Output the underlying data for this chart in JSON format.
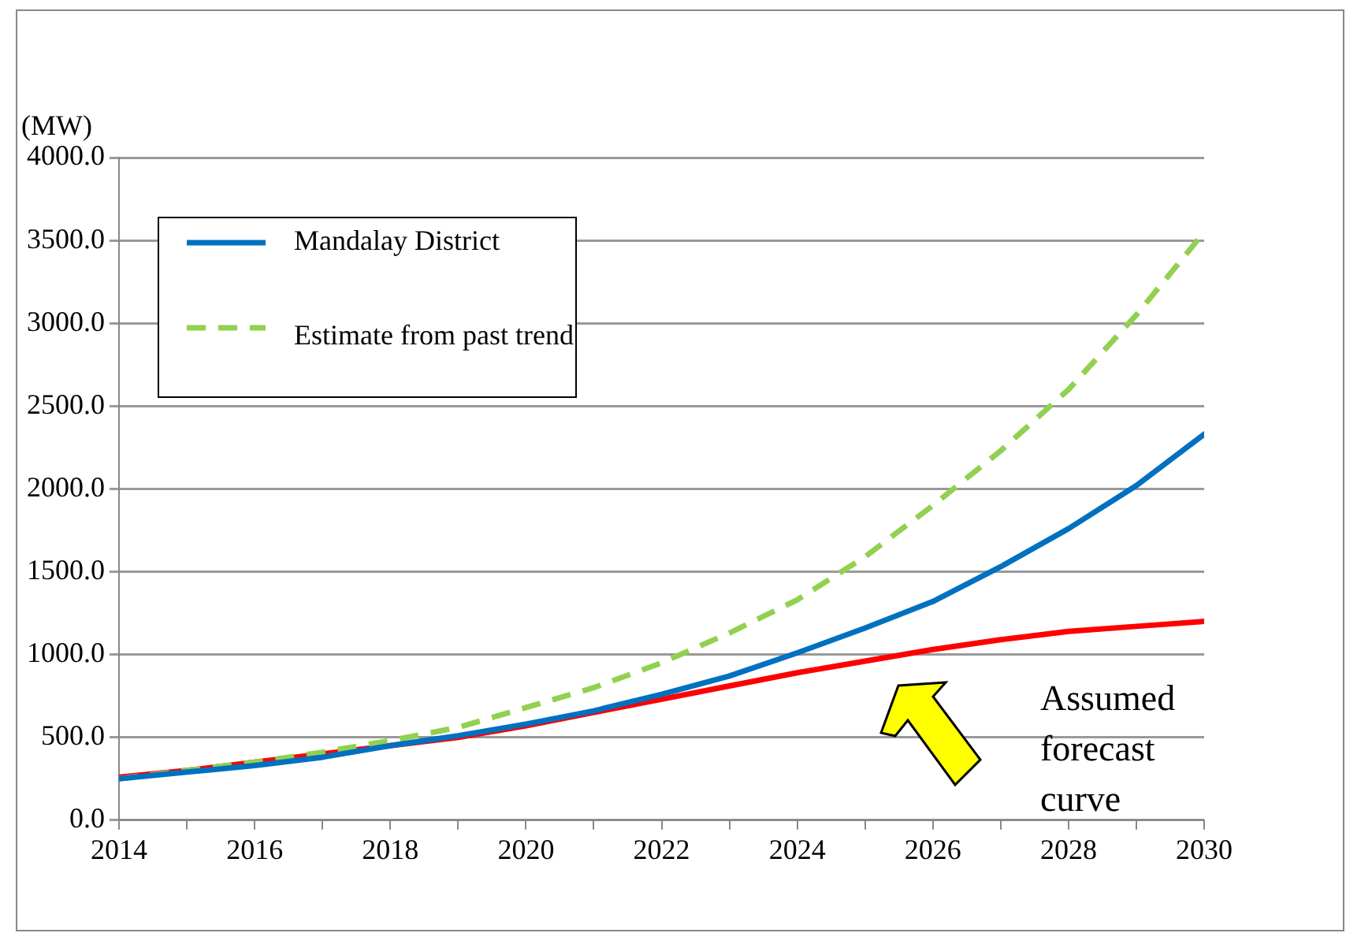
{
  "chart_data": {
    "type": "line",
    "ylabel": "(MW)",
    "x": [
      2014,
      2015,
      2016,
      2017,
      2018,
      2019,
      2020,
      2021,
      2022,
      2023,
      2024,
      2025,
      2026,
      2027,
      2028,
      2029,
      2030
    ],
    "series": [
      {
        "name": "Mandalay District",
        "color": "#0070c0",
        "line_style": "solid",
        "values": [
          250,
          290,
          330,
          380,
          450,
          510,
          580,
          660,
          760,
          870,
          1010,
          1160,
          1320,
          1530,
          1760,
          2020,
          2330
        ]
      },
      {
        "name": "Estimate from past trend",
        "color": "#92d050",
        "line_style": "dashed",
        "values": [
          250,
          300,
          350,
          410,
          480,
          560,
          680,
          800,
          950,
          1130,
          1330,
          1590,
          1900,
          2230,
          2600,
          3050,
          3550
        ]
      },
      {
        "color": "#ff0000",
        "line_style": "solid",
        "values": [
          260,
          300,
          350,
          400,
          450,
          500,
          570,
          650,
          730,
          810,
          890,
          960,
          1030,
          1090,
          1140,
          1170,
          1200
        ]
      }
    ],
    "xlim": [
      2014,
      2030
    ],
    "xticks": [
      2014,
      {
        "value": 2015,
        "label": null
      },
      2016,
      {
        "value": 2017,
        "label": null
      },
      2018,
      {
        "value": 2019,
        "label": null
      },
      2020,
      {
        "value": 2021,
        "label": null
      },
      2022,
      {
        "value": 2023,
        "label": null
      },
      2024,
      {
        "value": 2025,
        "label": null
      },
      2026,
      {
        "value": 2027,
        "label": null
      },
      2028,
      {
        "value": 2029,
        "label": null
      },
      2030
    ],
    "ylim": [
      0,
      4000
    ],
    "yticks": [
      {
        "value": 0,
        "label": "0.0"
      },
      {
        "value": 500,
        "label": "500.0"
      },
      {
        "value": 1000,
        "label": "1000.0"
      },
      {
        "value": 1500,
        "label": "1500.0"
      },
      {
        "value": 2000,
        "label": "2000.0"
      },
      {
        "value": 2500,
        "label": "2500.0"
      },
      {
        "value": 3000,
        "label": "3000.0"
      },
      {
        "value": 3500,
        "label": "3500.0"
      },
      {
        "value": 4000,
        "label": "4000.0"
      }
    ],
    "grid": "y",
    "legend": "top left",
    "marker": "none",
    "annotations": [
      "Assumed forecast curve"
    ]
  }
}
